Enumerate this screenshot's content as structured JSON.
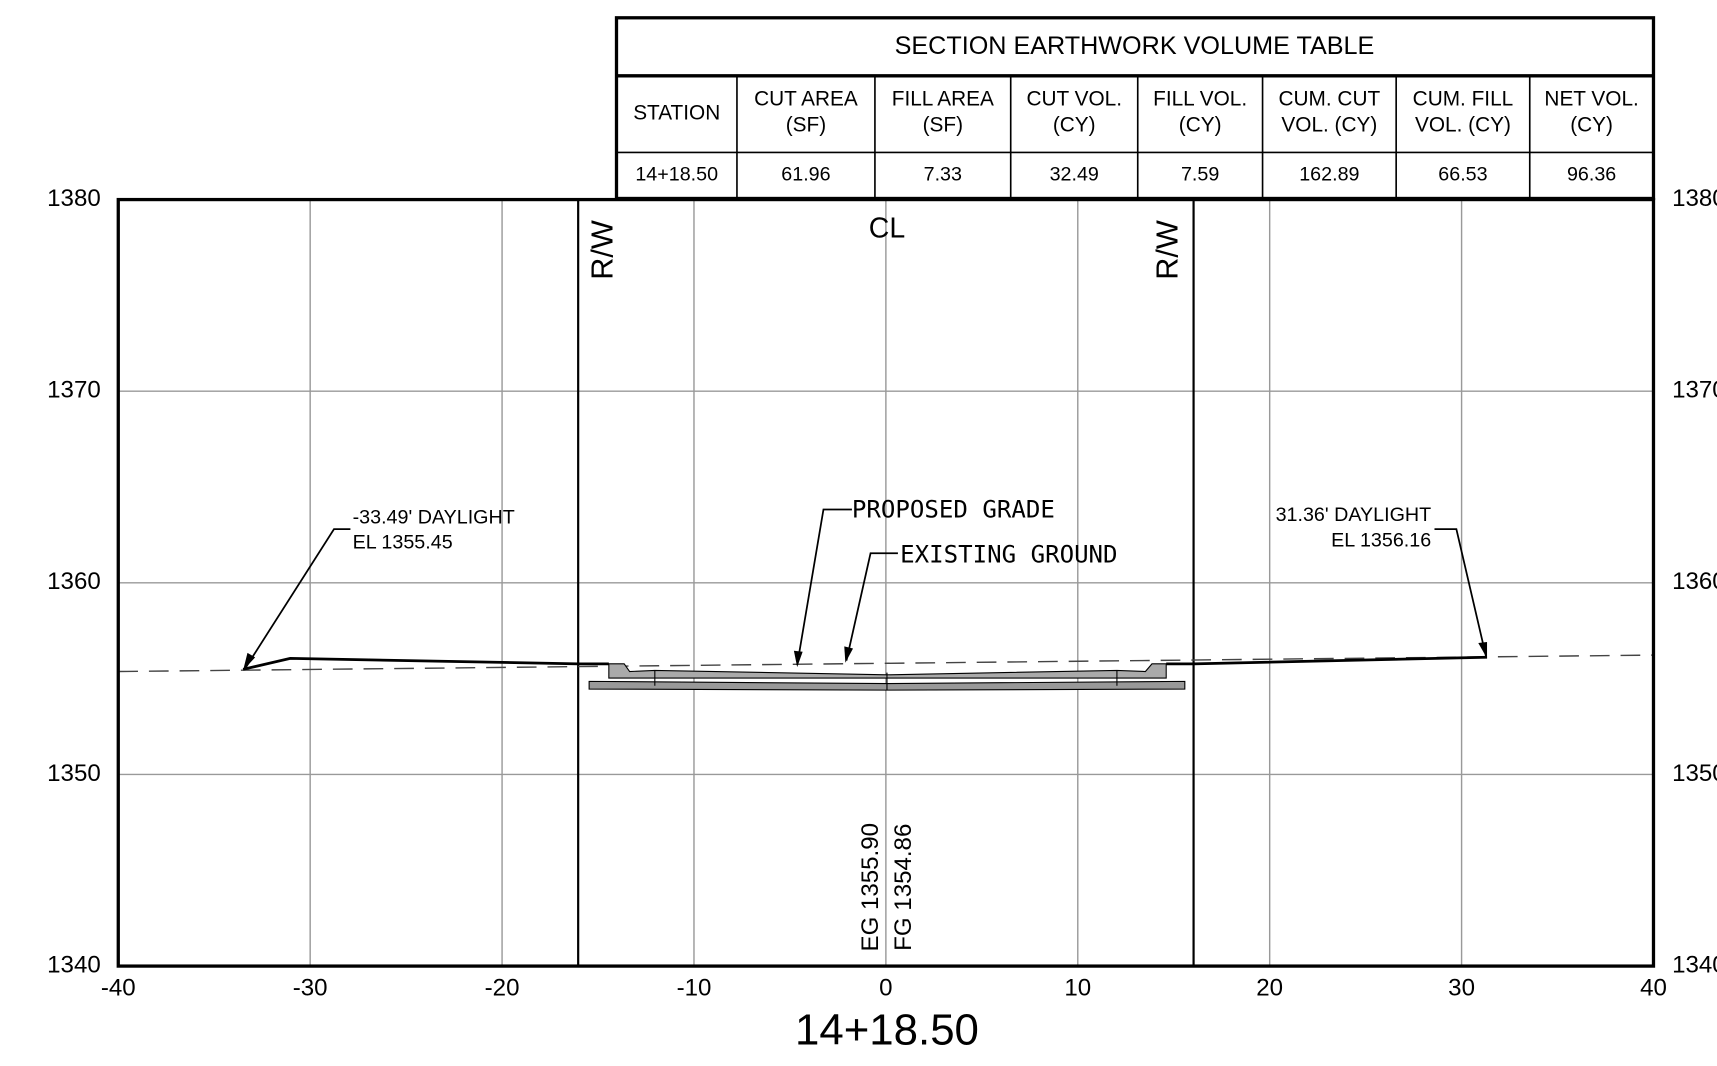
{
  "table": {
    "title": "SECTION EARTHWORK VOLUME TABLE",
    "headers": [
      [
        "STATION"
      ],
      [
        "CUT AREA",
        "(SF)"
      ],
      [
        "FILL AREA",
        "(SF)"
      ],
      [
        "CUT VOL.",
        "(CY)"
      ],
      [
        "FILL VOL.",
        "(CY)"
      ],
      [
        "CUM. CUT",
        "VOL. (CY)"
      ],
      [
        "CUM. FILL",
        "VOL. (CY)"
      ],
      [
        "NET VOL.",
        "(CY)"
      ]
    ],
    "rows": [
      [
        "14+18.50",
        "61.96",
        "7.33",
        "32.49",
        "7.59",
        "162.89",
        "66.53",
        "96.36"
      ]
    ]
  },
  "plot": {
    "xlim": [
      -40,
      40
    ],
    "ylim": [
      1340,
      1380
    ],
    "xticks": [
      -40,
      -30,
      -20,
      -10,
      0,
      10,
      20,
      30,
      40
    ],
    "yticks": [
      1340,
      1350,
      1360,
      1370,
      1380
    ]
  },
  "labels": {
    "rw_left": "R/W",
    "rw_right": "R/W",
    "cl": "CL",
    "proposed": "PROPOSED GRADE",
    "existing": "EXISTING GROUND",
    "left_daylight": [
      "-33.49' DAYLIGHT",
      "EL 1355.45"
    ],
    "right_daylight": [
      "31.36' DAYLIGHT",
      "EL 1356.16"
    ],
    "eg": "EG 1355.90",
    "fg": "FG 1354.86",
    "station": "14+18.50"
  }
}
